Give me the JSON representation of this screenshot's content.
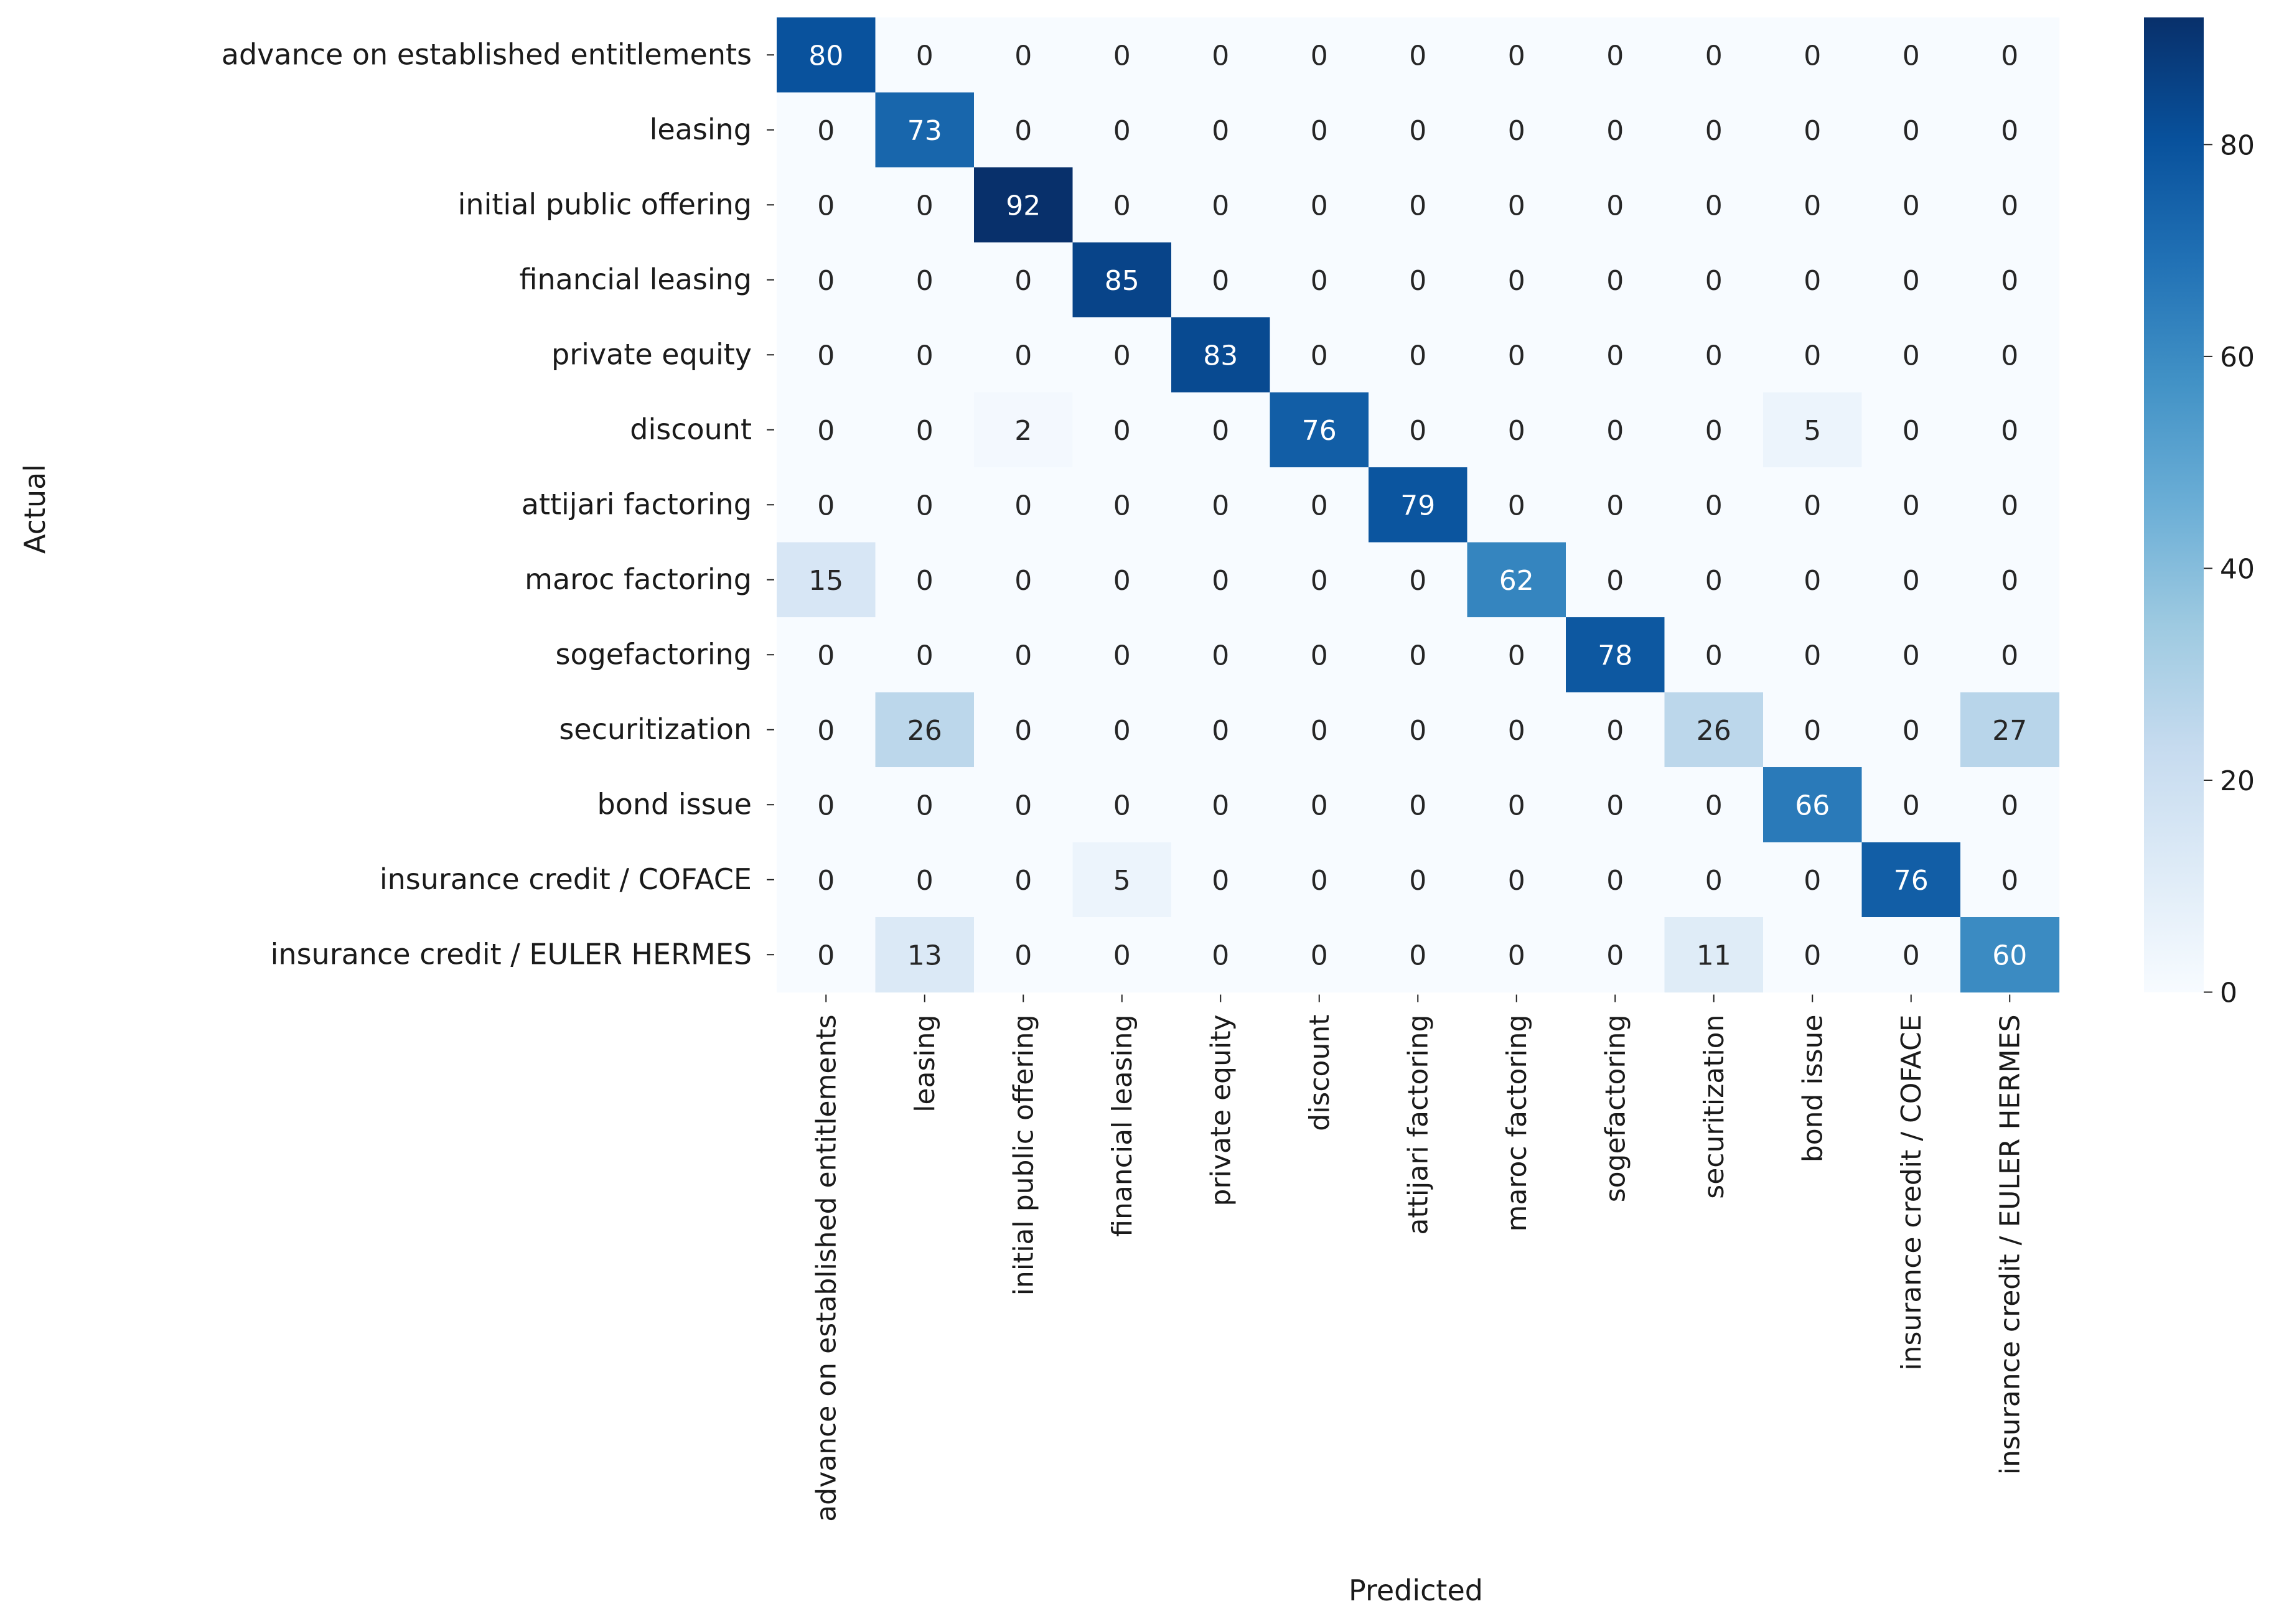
{
  "chart_data": {
    "type": "heatmap",
    "title": "",
    "xlabel": "Predicted",
    "ylabel": "Actual",
    "categories": [
      "advance on established entitlements",
      "leasing",
      "initial public offering",
      "financial leasing",
      "private equity",
      "discount",
      "attijari factoring",
      "maroc factoring",
      "sogefactoring",
      "securitization",
      "bond issue",
      "insurance credit / COFACE",
      "insurance credit / EULER HERMES"
    ],
    "matrix": [
      [
        80,
        0,
        0,
        0,
        0,
        0,
        0,
        0,
        0,
        0,
        0,
        0,
        0
      ],
      [
        0,
        73,
        0,
        0,
        0,
        0,
        0,
        0,
        0,
        0,
        0,
        0,
        0
      ],
      [
        0,
        0,
        92,
        0,
        0,
        0,
        0,
        0,
        0,
        0,
        0,
        0,
        0
      ],
      [
        0,
        0,
        0,
        85,
        0,
        0,
        0,
        0,
        0,
        0,
        0,
        0,
        0
      ],
      [
        0,
        0,
        0,
        0,
        83,
        0,
        0,
        0,
        0,
        0,
        0,
        0,
        0
      ],
      [
        0,
        0,
        2,
        0,
        0,
        76,
        0,
        0,
        0,
        0,
        5,
        0,
        0
      ],
      [
        0,
        0,
        0,
        0,
        0,
        0,
        79,
        0,
        0,
        0,
        0,
        0,
        0
      ],
      [
        15,
        0,
        0,
        0,
        0,
        0,
        0,
        62,
        0,
        0,
        0,
        0,
        0
      ],
      [
        0,
        0,
        0,
        0,
        0,
        0,
        0,
        0,
        78,
        0,
        0,
        0,
        0
      ],
      [
        0,
        26,
        0,
        0,
        0,
        0,
        0,
        0,
        0,
        26,
        0,
        0,
        27
      ],
      [
        0,
        0,
        0,
        0,
        0,
        0,
        0,
        0,
        0,
        0,
        66,
        0,
        0
      ],
      [
        0,
        0,
        0,
        5,
        0,
        0,
        0,
        0,
        0,
        0,
        0,
        76,
        0
      ],
      [
        0,
        13,
        0,
        0,
        0,
        0,
        0,
        0,
        0,
        11,
        0,
        0,
        60
      ]
    ],
    "colorbar": {
      "colormap": "Blues",
      "min": 0,
      "max": 92,
      "ticks": [
        0,
        20,
        40,
        60,
        80
      ]
    }
  }
}
